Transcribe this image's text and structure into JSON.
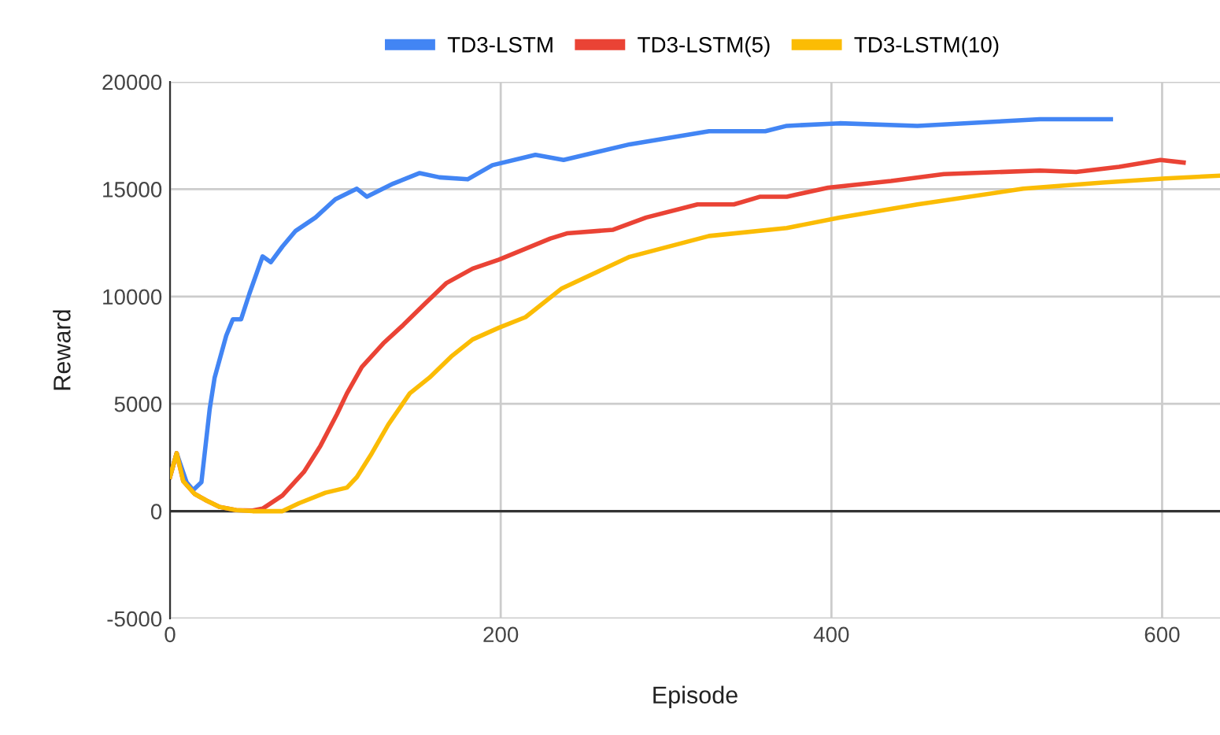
{
  "chart_data": {
    "type": "line",
    "xlabel": "Episode",
    "ylabel": "Reward",
    "xlim": [
      0,
      635
    ],
    "xticks": [
      0,
      200,
      400,
      600
    ],
    "ylim": [
      -5000,
      20000
    ],
    "yticks": [
      -5000,
      0,
      5000,
      10000,
      15000,
      20000
    ],
    "grid": true,
    "legend": "top",
    "marker": "none",
    "line_style": "solid",
    "series": [
      {
        "name": "TD3-LSTM",
        "color": "#4285f4",
        "x": [
          0,
          4,
          10,
          14,
          19,
          24,
          27,
          34,
          38,
          43,
          48,
          56,
          61,
          68,
          76,
          88,
          100,
          113,
          119,
          135,
          151,
          163,
          180,
          195,
          221,
          238,
          278,
          326,
          360,
          373,
          405,
          452,
          500,
          526,
          569
        ],
        "values": [
          1600,
          2700,
          1350,
          980,
          1350,
          4760,
          6230,
          8180,
          8940,
          8940,
          10130,
          11870,
          11600,
          12330,
          13060,
          13680,
          14530,
          15020,
          14650,
          15260,
          15750,
          15550,
          15460,
          16120,
          16600,
          16360,
          17090,
          17700,
          17700,
          17950,
          18070,
          17950,
          18150,
          18260,
          18260
        ]
      },
      {
        "name": "TD3-LSTM(5)",
        "color": "#ea4335",
        "x": [
          0,
          4,
          8,
          15,
          22,
          30,
          40,
          50,
          56,
          68,
          81,
          91,
          101,
          107,
          116,
          129,
          141,
          154,
          167,
          183,
          199,
          230,
          240,
          268,
          288,
          319,
          341,
          357,
          373,
          398,
          436,
          468,
          526,
          548,
          574,
          599,
          613
        ],
        "values": [
          1600,
          2700,
          1400,
          800,
          500,
          200,
          50,
          30,
          120,
          730,
          1830,
          3050,
          4520,
          5490,
          6720,
          7820,
          8670,
          9650,
          10620,
          11300,
          11720,
          12700,
          12940,
          13110,
          13680,
          14290,
          14290,
          14650,
          14650,
          15070,
          15380,
          15700,
          15870,
          15800,
          16040,
          16360,
          16240
        ]
      },
      {
        "name": "TD3-LSTM(10)",
        "color": "#fbbc04",
        "x": [
          0,
          4,
          8,
          15,
          22,
          30,
          40,
          50,
          60,
          68,
          78,
          94,
          107,
          113,
          122,
          132,
          145,
          157,
          170,
          183,
          199,
          215,
          237,
          278,
          326,
          373,
          405,
          452,
          516,
          564,
          602,
          635
        ],
        "values": [
          1600,
          2700,
          1400,
          800,
          500,
          200,
          50,
          0,
          0,
          0,
          370,
          860,
          1100,
          1590,
          2690,
          4030,
          5490,
          6230,
          7200,
          8000,
          8550,
          9040,
          10380,
          11850,
          12820,
          13190,
          13680,
          14290,
          15020,
          15310,
          15500,
          15630
        ]
      }
    ]
  }
}
